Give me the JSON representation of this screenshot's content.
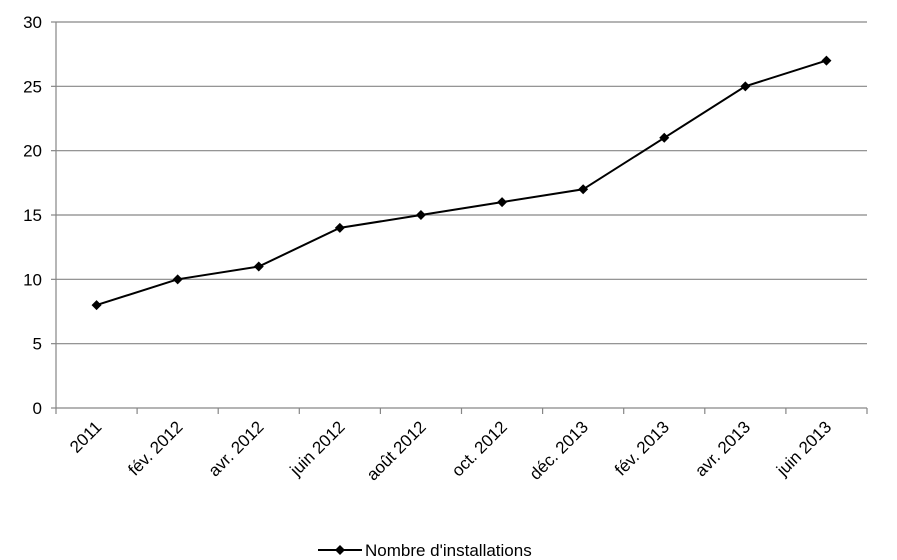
{
  "chart_data": {
    "type": "line",
    "title": "",
    "xlabel": "",
    "ylabel": "",
    "categories": [
      "2011",
      "fév. 2012",
      "avr. 2012",
      "juin 2012",
      "août 2012",
      "oct. 2012",
      "déc. 2013",
      "fév. 2013",
      "avr. 2013",
      "juin 2013"
    ],
    "series": [
      {
        "name": "Nombre d'installations",
        "values": [
          8,
          10,
          11,
          14,
          15,
          16,
          17,
          21,
          25,
          27
        ]
      }
    ],
    "ylim": [
      0,
      30
    ],
    "yticks": [
      0,
      5,
      10,
      15,
      20,
      25,
      30
    ],
    "grid": true,
    "legend_position": "bottom",
    "colors": {
      "line": "#000000",
      "grid": "#868686",
      "axis": "#868686"
    }
  }
}
